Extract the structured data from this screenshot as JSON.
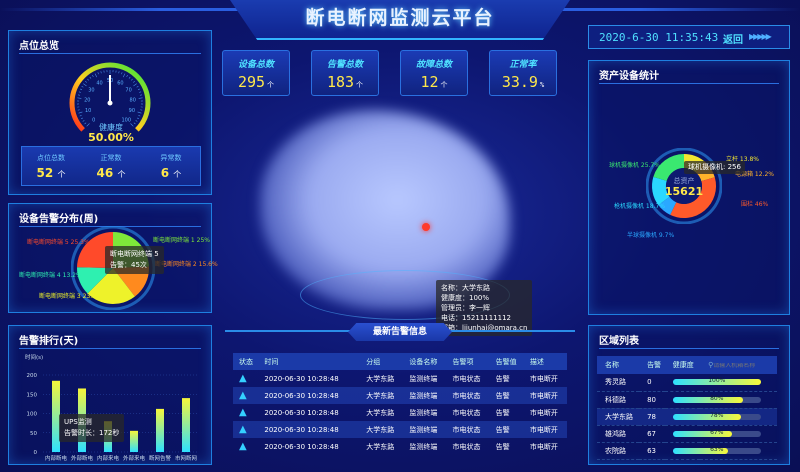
{
  "header": {
    "title": "断电断网监测云平台",
    "datetime": "2020-6-30  11:35:43",
    "back_label": "返回"
  },
  "kpis": [
    {
      "label": "设备总数",
      "value": "295",
      "unit": "个"
    },
    {
      "label": "告警总数",
      "value": "183",
      "unit": "个"
    },
    {
      "label": "故障总数",
      "value": "12",
      "unit": "个"
    },
    {
      "label": "正常率",
      "value": "33.9",
      "unit": "%"
    }
  ],
  "overview": {
    "title": "点位总览",
    "gauge_label": "健康度",
    "gauge_value": "50.00%",
    "gauge_percent": 50,
    "gauge_ticks": [
      "0",
      "10",
      "20",
      "30",
      "40",
      "50",
      "60",
      "70",
      "80",
      "90",
      "100"
    ],
    "stats": [
      {
        "label": "点位总数",
        "value": "52",
        "unit": "个"
      },
      {
        "label": "正常数",
        "value": "46",
        "unit": "个"
      },
      {
        "label": "异常数",
        "value": "6",
        "unit": "个"
      }
    ]
  },
  "chart_data": [
    {
      "type": "pie",
      "title": "设备告警分布(周)",
      "slices": [
        {
          "label": "断电断网终端 1",
          "percent": 25,
          "text": "断电断网终端 1  25%",
          "color": "#7ee83a"
        },
        {
          "label": "断电断网终端 2",
          "percent": 15.6,
          "text": "断电断网终端 2  15.6%",
          "color": "#ff8a1e"
        },
        {
          "label": "断电断网终端 3",
          "percent": 23.5,
          "text": "断电断网终端 3 23.5%",
          "color": "#eef22a"
        },
        {
          "label": "断电断网终端 4",
          "percent": 13.2,
          "text": "断电断网终端 4 13.2%",
          "color": "#2ef0b0"
        },
        {
          "label": "断电断网终端 5",
          "percent": 25.3,
          "text": "断电断网终端 5 25.3%",
          "color": "#ff4a2a"
        }
      ],
      "tooltip": {
        "name": "断电断网终端 5",
        "value": "告警：45次"
      }
    },
    {
      "type": "bar",
      "title": "告警排行(天)",
      "ylabel": "时间(s)",
      "ylim": [
        0,
        200
      ],
      "yticks": [
        "0",
        "50",
        "100",
        "150",
        "200"
      ],
      "categories": [
        "内部断电",
        "外部断电",
        "内部来电",
        "外部来电",
        "断网告警",
        "市网断网"
      ],
      "values": [
        185,
        165,
        80,
        55,
        112,
        140
      ],
      "tooltip": {
        "name": "UPS监测",
        "value": "告警时长：172秒"
      }
    },
    {
      "type": "pie",
      "title": "资产设备统计",
      "center_label": "总资产",
      "center_value": "15621",
      "slices": [
        {
          "label": "立杆",
          "percent": 13.8,
          "text": "立杆 13.8%",
          "color": "#f2e630"
        },
        {
          "label": "电源箱",
          "percent": 12.2,
          "text": "电源箱 12.2%",
          "color": "#ffb22a"
        },
        {
          "label": "围栏",
          "percent": 46,
          "text": "围栏 46%",
          "color": "#ff5a2a"
        },
        {
          "label": "半球摄像机",
          "percent": 9.7,
          "text": "半球摄像机 9.7%",
          "color": "#2aa8ff"
        },
        {
          "label": "枪机摄像机",
          "percent": 18.7,
          "text": "枪机摄像机 18.7%",
          "color": "#2ad8ff"
        },
        {
          "label": "球机摄像机",
          "percent": 25.7,
          "text": "球机摄像机 25.7%",
          "color": "#3ae870"
        }
      ],
      "tooltip": {
        "name": "球机摄像机",
        "value": "256"
      }
    }
  ],
  "map_tooltip": {
    "lines": [
      "名称：大学东路",
      "健康度：100%",
      "管理员：李一辉",
      "电话：15211111112",
      "邮箱：lijunhai@omara.cn"
    ]
  },
  "alarms": {
    "title": "最新告警信息",
    "columns": [
      "状态",
      "时间",
      "分组",
      "设备名称",
      "告警项",
      "告警值",
      "描述"
    ],
    "rows": [
      [
        "2020-06-30 10:28:48",
        "大学东路",
        "监测终端",
        "市电状态",
        "告警",
        "市电断开"
      ],
      [
        "2020-06-30 10:28:48",
        "大学东路",
        "监测终端",
        "市电状态",
        "告警",
        "市电断开"
      ],
      [
        "2020-06-30 10:28:48",
        "大学东路",
        "监测终端",
        "市电状态",
        "告警",
        "市电断开"
      ],
      [
        "2020-06-30 10:28:48",
        "大学东路",
        "监测终端",
        "市电状态",
        "告警",
        "市电断开"
      ],
      [
        "2020-06-30 10:28:48",
        "大学东路",
        "监测终端",
        "市电状态",
        "告警",
        "市电断开"
      ]
    ]
  },
  "regions": {
    "title": "区域列表",
    "columns": [
      "名称",
      "告警",
      "健康度"
    ],
    "search_placeholder": "请输入机箱名称",
    "rows": [
      {
        "name": "秀灵路",
        "alarms": "0",
        "health": 100,
        "health_text": "100%"
      },
      {
        "name": "科德路",
        "alarms": "80",
        "health": 80,
        "health_text": "80%"
      },
      {
        "name": "大学东路",
        "alarms": "78",
        "health": 78,
        "health_text": "78%"
      },
      {
        "name": "雄鸿路",
        "alarms": "67",
        "health": 67,
        "health_text": "67%"
      },
      {
        "name": "农院路",
        "alarms": "63",
        "health": 63,
        "health_text": "63%"
      }
    ]
  }
}
